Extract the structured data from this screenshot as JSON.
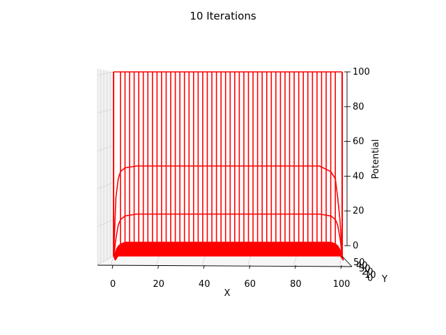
{
  "chart_data": {
    "type": "line",
    "projection": "3d",
    "title": "10 Iterations",
    "xlabel": "X",
    "ylabel": "Y",
    "zlabel": "Potential",
    "x_ticks": [
      0,
      20,
      40,
      60,
      80,
      100
    ],
    "y_ticks": [
      0,
      10,
      20,
      30,
      40,
      50
    ],
    "y_tick_labels_visible": [
      "0",
      "10",
      "20",
      "30",
      "40",
      "50"
    ],
    "z_ticks": [
      0,
      20,
      40,
      60,
      80,
      100
    ],
    "xlim": [
      0,
      100
    ],
    "ylim": [
      0,
      50
    ],
    "zlim": [
      0,
      100
    ],
    "grid": true,
    "line_color": "#ff0000",
    "series": [
      {
        "kind": "wireframe-row",
        "x": [
          0,
          1,
          2,
          3,
          5,
          10,
          20,
          50,
          80,
          90,
          95,
          97,
          98,
          99,
          100
        ],
        "y_levels_depicted": [
          0,
          2,
          4,
          6,
          8,
          10,
          12,
          14,
          16,
          18,
          20,
          22,
          24,
          26,
          28,
          30,
          32,
          34,
          36,
          38,
          40,
          42,
          44,
          46,
          48,
          50
        ],
        "profiles_potential": {
          "y_50_boundary": [
            100,
            100,
            100,
            100,
            100,
            100,
            100,
            100,
            100,
            100,
            100,
            100,
            100,
            100,
            100
          ],
          "y_48": [
            0,
            32,
            42,
            46,
            48,
            49,
            49,
            49,
            49,
            49,
            46,
            42,
            32,
            20,
            0
          ],
          "y_46": [
            0,
            10,
            17,
            20,
            22,
            23,
            23,
            23,
            23,
            23,
            22,
            20,
            17,
            10,
            0
          ],
          "y_44": [
            0,
            4,
            6,
            7,
            8,
            8,
            8,
            8,
            8,
            8,
            8,
            7,
            6,
            4,
            0
          ],
          "y_42_and_below": [
            0,
            1,
            2,
            2,
            2,
            2,
            2,
            2,
            2,
            2,
            2,
            2,
            2,
            1,
            0
          ]
        }
      }
    ],
    "vertical_boundary_x": [
      0,
      3,
      5,
      7,
      9,
      11,
      13,
      15,
      17,
      19,
      21,
      23,
      25,
      27,
      29,
      31,
      33,
      35,
      37,
      39,
      41,
      43,
      45,
      47,
      49,
      51,
      53,
      55,
      57,
      59,
      61,
      63,
      65,
      67,
      69,
      71,
      73,
      75,
      77,
      79,
      81,
      83,
      85,
      87,
      89,
      91,
      93,
      95,
      97,
      100
    ]
  }
}
